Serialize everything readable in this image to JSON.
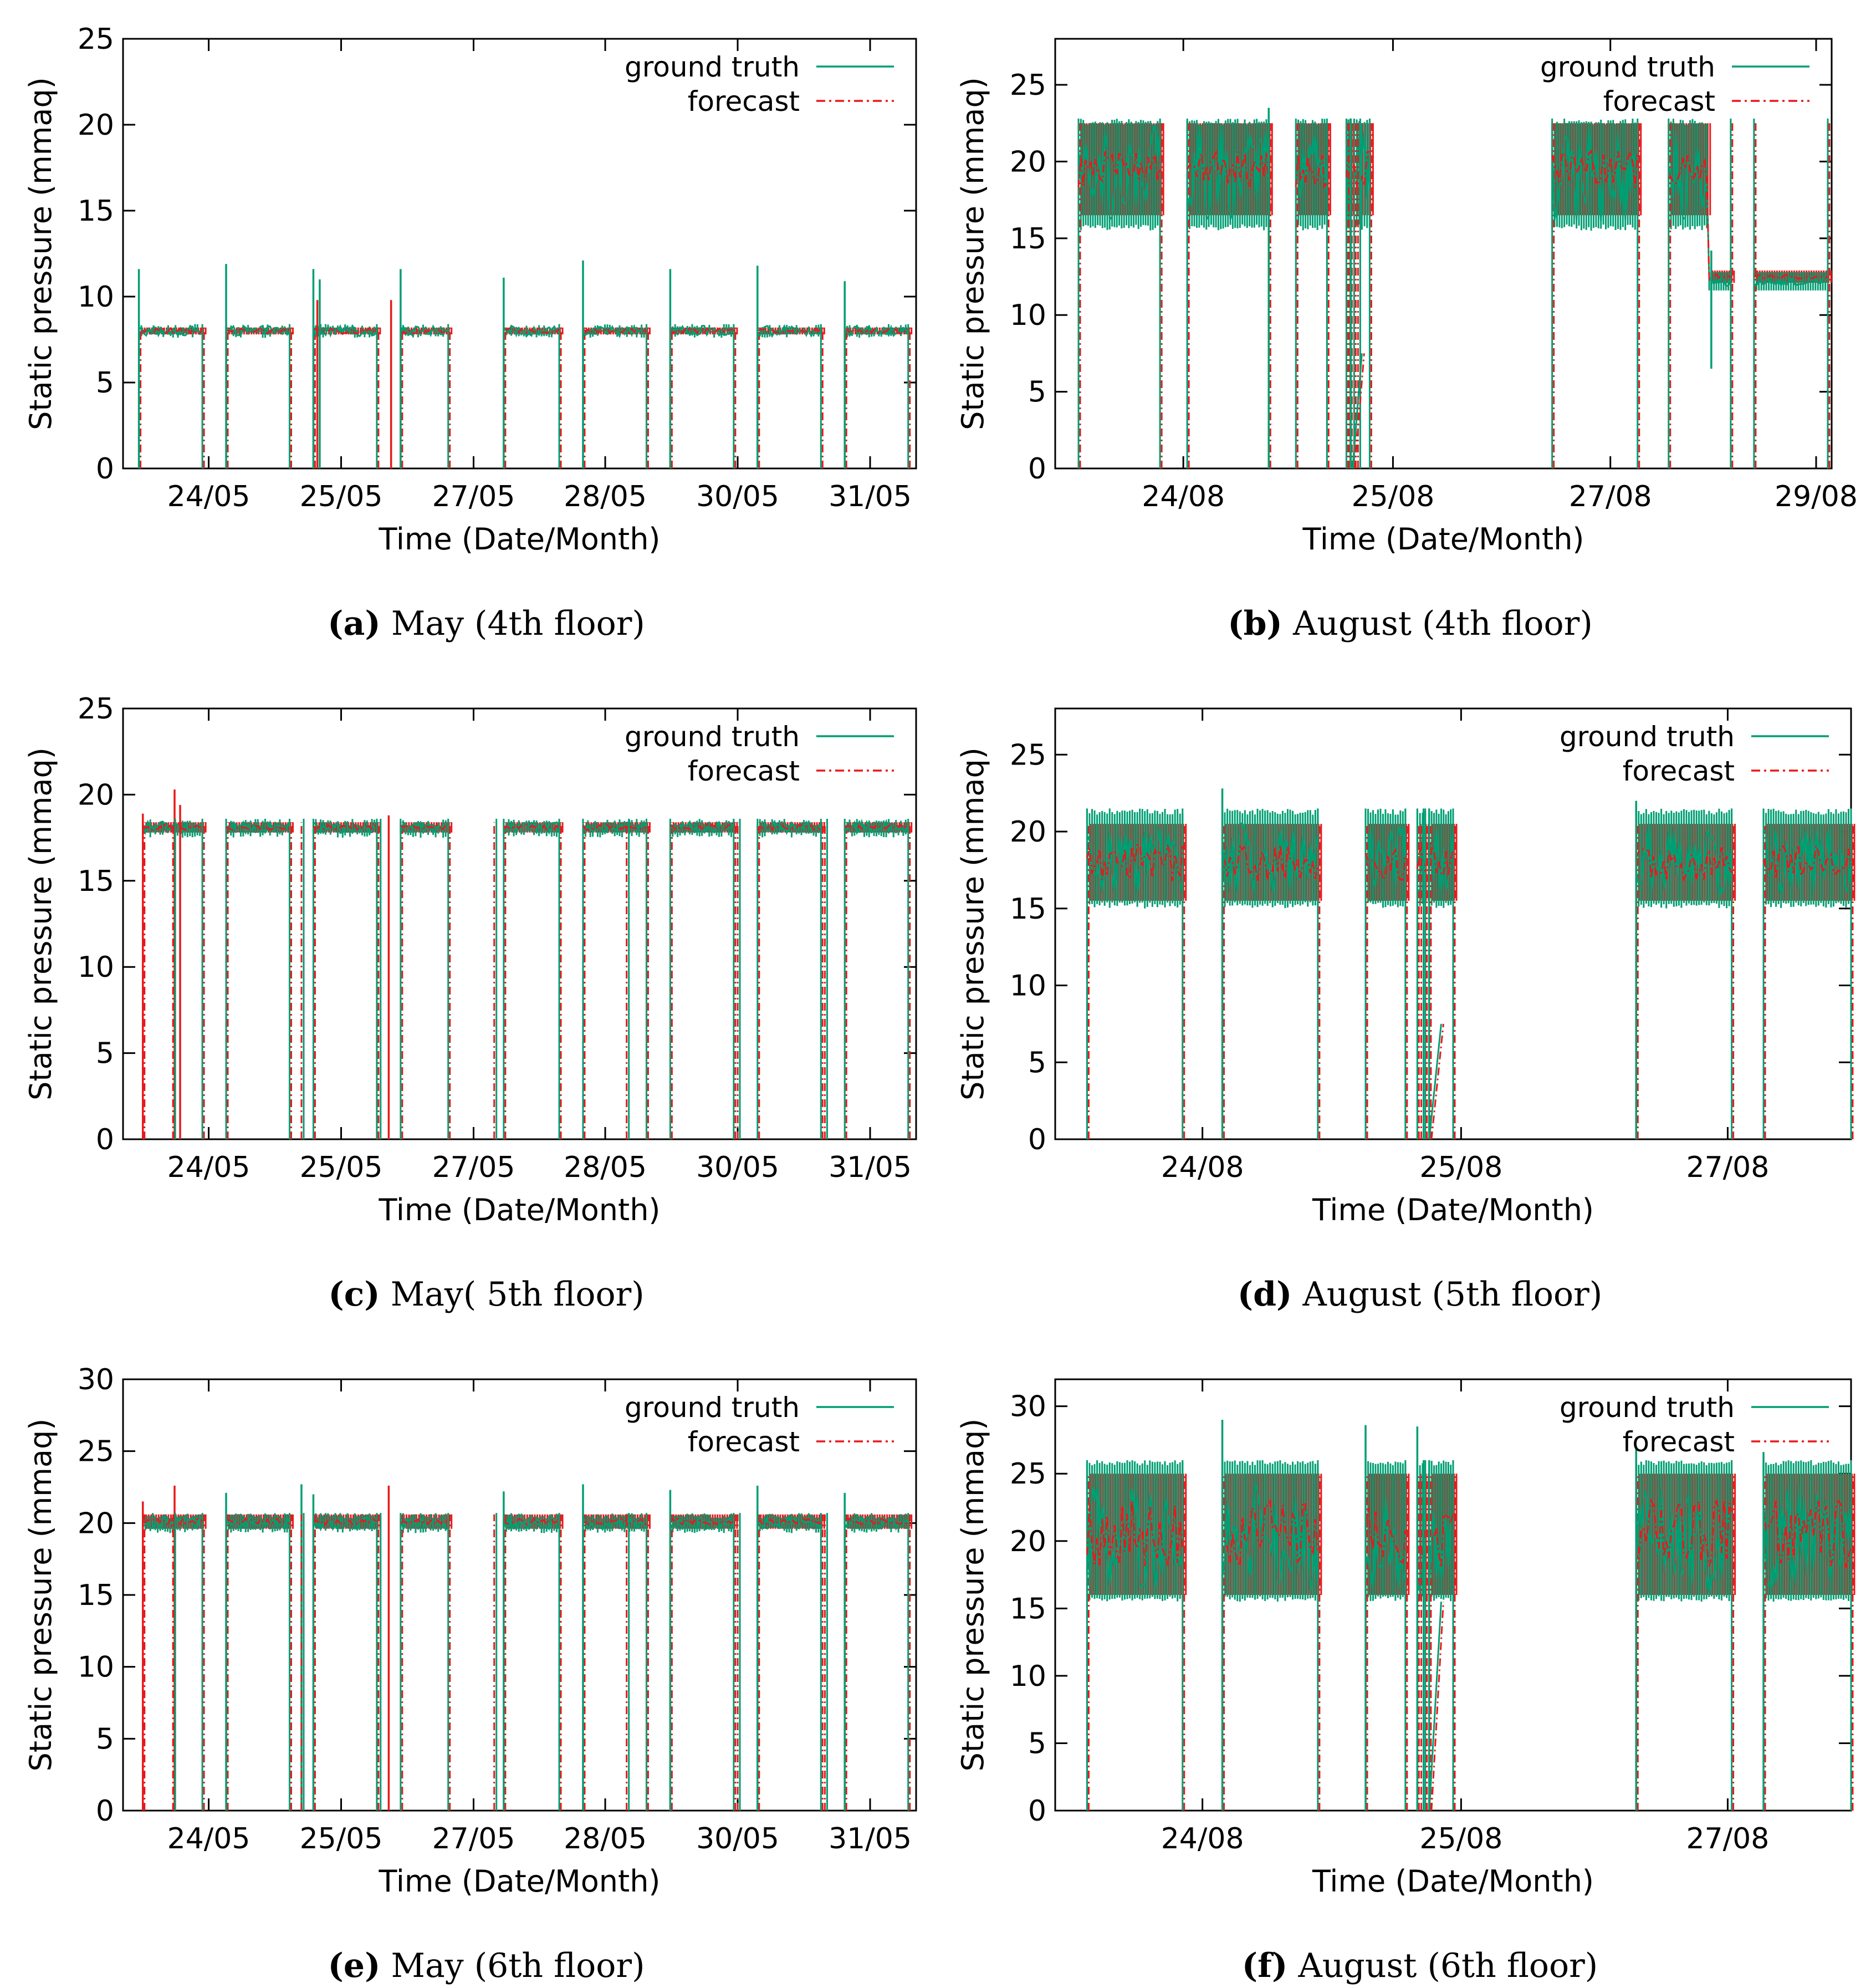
{
  "colors": {
    "ground_truth": "#009e73",
    "forecast": "#e8191b",
    "axis": "#000000"
  },
  "chart_data": [
    {
      "id": "a",
      "type": "line",
      "caption_letter": "(a)",
      "caption_text": "May (4th floor)",
      "xlabel": "Time (Date/Month)",
      "ylabel": "Static pressure (mmaq)",
      "ylim": [
        0,
        25
      ],
      "yticks": [
        "0",
        "5",
        "10",
        "15",
        "20",
        "25"
      ],
      "xlim": [
        0,
        100
      ],
      "xticks": [
        {
          "x": 10.8,
          "label": "24/05"
        },
        {
          "x": 27.5,
          "label": "25/05"
        },
        {
          "x": 44.2,
          "label": "27/05"
        },
        {
          "x": 60.8,
          "label": "28/05"
        },
        {
          "x": 77.5,
          "label": "30/05"
        },
        {
          "x": 94.2,
          "label": "31/05"
        }
      ],
      "legend": [
        "ground truth",
        "forecast"
      ],
      "segments": [
        [
          2,
          10
        ],
        [
          13,
          21
        ],
        [
          24,
          32
        ],
        [
          35,
          41
        ],
        [
          48,
          55
        ],
        [
          58,
          66
        ],
        [
          69,
          77
        ],
        [
          80,
          88
        ],
        [
          91,
          99
        ]
      ],
      "gt_mean": 8,
      "gt_noise": 0.3,
      "fc_mean": 8,
      "fc_noise": 0.15,
      "fc_band": [
        7.8,
        8.2
      ],
      "gt_band": [
        7.6,
        8.4
      ],
      "spikes": [
        {
          "x": 2,
          "v": 11.6,
          "s": "gt"
        },
        {
          "x": 13,
          "v": 11.9,
          "s": "gt"
        },
        {
          "x": 24,
          "v": 11.6,
          "s": "gt"
        },
        {
          "x": 24.5,
          "v": 9.8,
          "s": "fc"
        },
        {
          "x": 24.8,
          "v": 11.0,
          "s": "gt"
        },
        {
          "x": 33.8,
          "v": 9.8,
          "s": "fc"
        },
        {
          "x": 35,
          "v": 11.6,
          "s": "gt"
        },
        {
          "x": 48,
          "v": 11.1,
          "s": "gt"
        },
        {
          "x": 58,
          "v": 12.1,
          "s": "gt"
        },
        {
          "x": 69,
          "v": 11.6,
          "s": "gt"
        },
        {
          "x": 80,
          "v": 11.8,
          "s": "gt"
        },
        {
          "x": 91,
          "v": 10.9,
          "s": "gt"
        }
      ],
      "dips": [],
      "ramps": [],
      "level_shift": null
    },
    {
      "id": "b",
      "type": "line",
      "caption_letter": "(b)",
      "caption_text": "August (4th floor)",
      "xlabel": "Time (Date/Month)",
      "ylabel": "Static pressure (mmaq)",
      "ylim": [
        0,
        28
      ],
      "yticks": [
        "0",
        "5",
        "10",
        "15",
        "20",
        "25"
      ],
      "xlim": [
        0,
        100
      ],
      "xticks": [
        {
          "x": 16.5,
          "label": "24/08"
        },
        {
          "x": 43.5,
          "label": "25/08"
        },
        {
          "x": 71.5,
          "label": "27/08"
        },
        {
          "x": 98,
          "label": "29/08"
        }
      ],
      "legend": [
        "ground truth",
        "forecast"
      ],
      "segments": [
        [
          3,
          13.5
        ],
        [
          17,
          27.5
        ],
        [
          31,
          35
        ],
        [
          37.5,
          38
        ],
        [
          38.5,
          40.5
        ],
        [
          64,
          75
        ],
        [
          79,
          87
        ],
        [
          90,
          99.5
        ]
      ],
      "gt_mean": 19.2,
      "gt_noise": 3.2,
      "fc_mean": 19.5,
      "fc_noise": 1.2,
      "fc_band": [
        16.5,
        22.5
      ],
      "gt_band": [
        15.5,
        22.8
      ],
      "spikes": [
        {
          "x": 27.5,
          "v": 23.5,
          "s": "gt"
        }
      ],
      "dips": [
        {
          "x": 37.8,
          "v": 0
        },
        {
          "x": 39.0,
          "v": 0
        }
      ],
      "ramps": [
        {
          "x1": 38.3,
          "v1": 0,
          "x2": 39.5,
          "v2": 7.5
        }
      ],
      "level_shift": {
        "x": 84,
        "v": 12.2,
        "dip_x": 84.5,
        "dip_v": 6.5
      }
    },
    {
      "id": "c",
      "type": "line",
      "caption_letter": "(c)",
      "caption_text": "May( 5th floor)",
      "xlabel": "Time (Date/Month)",
      "ylabel": "Static pressure (mmaq)",
      "ylim": [
        0,
        25
      ],
      "yticks": [
        "0",
        "5",
        "10",
        "15",
        "20",
        "25"
      ],
      "xlim": [
        0,
        100
      ],
      "xticks": [
        {
          "x": 10.8,
          "label": "24/05"
        },
        {
          "x": 27.5,
          "label": "25/05"
        },
        {
          "x": 44.2,
          "label": "27/05"
        },
        {
          "x": 60.8,
          "label": "28/05"
        },
        {
          "x": 77.5,
          "label": "30/05"
        },
        {
          "x": 94.2,
          "label": "31/05"
        }
      ],
      "legend": [
        "ground truth",
        "forecast"
      ],
      "segments": [
        [
          2.5,
          10
        ],
        [
          13,
          21
        ],
        [
          24,
          32
        ],
        [
          35,
          41
        ],
        [
          48,
          55
        ],
        [
          58,
          66
        ],
        [
          69,
          77
        ],
        [
          80,
          88
        ],
        [
          91,
          99
        ]
      ],
      "gt_mean": 18.1,
      "gt_noise": 0.35,
      "fc_mean": 18.1,
      "fc_noise": 0.15,
      "fc_band": [
        17.8,
        18.4
      ],
      "gt_band": [
        17.5,
        18.6
      ],
      "spikes": [
        {
          "x": 2.5,
          "v": 18.9,
          "s": "fc"
        },
        {
          "x": 6.5,
          "v": 20.3,
          "s": "fc"
        },
        {
          "x": 7.2,
          "v": 19.4,
          "s": "fc"
        },
        {
          "x": 33.5,
          "v": 18.8,
          "s": "fc"
        }
      ],
      "dips": [
        {
          "x": 6.3,
          "v": 0
        },
        {
          "x": 22.5,
          "v": 0
        },
        {
          "x": 32.2,
          "v": 0
        },
        {
          "x": 46.8,
          "v": 0
        },
        {
          "x": 63.5,
          "v": 0
        },
        {
          "x": 77.5,
          "v": 0
        },
        {
          "x": 88.5,
          "v": 0
        }
      ],
      "ramps": [],
      "level_shift": null
    },
    {
      "id": "d",
      "type": "line",
      "caption_letter": "(d)",
      "caption_text": "August (5th floor)",
      "xlabel": "Time (Date/Month)",
      "ylabel": "Static pressure (mmaq)",
      "ylim": [
        0,
        28
      ],
      "yticks": [
        "0",
        "5",
        "10",
        "15",
        "20",
        "25"
      ],
      "xlim": [
        0,
        100
      ],
      "xticks": [
        {
          "x": 18.5,
          "label": "24/08"
        },
        {
          "x": 51,
          "label": "25/08"
        },
        {
          "x": 84.5,
          "label": "27/08"
        }
      ],
      "legend": [
        "ground truth",
        "forecast"
      ],
      "segments": [
        [
          4,
          16
        ],
        [
          21,
          33
        ],
        [
          39,
          44
        ],
        [
          45.5,
          46.5
        ],
        [
          47,
          50
        ],
        [
          73,
          85
        ],
        [
          89,
          100
        ]
      ],
      "gt_mean": 18.2,
      "gt_noise": 2.4,
      "fc_mean": 18.0,
      "fc_noise": 1.2,
      "fc_band": [
        15.5,
        20.5
      ],
      "gt_band": [
        15.0,
        21.5
      ],
      "spikes": [
        {
          "x": 21,
          "v": 22.8,
          "s": "gt"
        },
        {
          "x": 73,
          "v": 22.0,
          "s": "gt"
        }
      ],
      "dips": [
        {
          "x": 46.0,
          "v": 0
        },
        {
          "x": 46.7,
          "v": 0
        }
      ],
      "ramps": [
        {
          "x1": 47.0,
          "v1": 0,
          "x2": 48.5,
          "v2": 7.5
        }
      ],
      "level_shift": null
    },
    {
      "id": "e",
      "type": "line",
      "caption_letter": "(e)",
      "caption_text": "May (6th floor)",
      "xlabel": "Time (Date/Month)",
      "ylabel": "Static pressure (mmaq)",
      "ylim": [
        0,
        30
      ],
      "yticks": [
        "0",
        "5",
        "10",
        "15",
        "20",
        "25",
        "30"
      ],
      "xlim": [
        0,
        100
      ],
      "xticks": [
        {
          "x": 10.8,
          "label": "24/05"
        },
        {
          "x": 27.5,
          "label": "25/05"
        },
        {
          "x": 44.2,
          "label": "27/05"
        },
        {
          "x": 60.8,
          "label": "28/05"
        },
        {
          "x": 77.5,
          "label": "30/05"
        },
        {
          "x": 94.2,
          "label": "31/05"
        }
      ],
      "legend": [
        "ground truth",
        "forecast"
      ],
      "segments": [
        [
          2.5,
          10
        ],
        [
          13,
          21
        ],
        [
          24,
          32
        ],
        [
          35,
          41
        ],
        [
          48,
          55
        ],
        [
          58,
          66
        ],
        [
          69,
          77
        ],
        [
          80,
          88
        ],
        [
          91,
          99
        ]
      ],
      "gt_mean": 20.0,
      "gt_noise": 0.45,
      "fc_mean": 20.1,
      "fc_noise": 0.2,
      "fc_band": [
        19.6,
        20.6
      ],
      "gt_band": [
        19.3,
        20.7
      ],
      "spikes": [
        {
          "x": 2.5,
          "v": 21.5,
          "s": "fc"
        },
        {
          "x": 6.5,
          "v": 22.6,
          "s": "fc"
        },
        {
          "x": 13,
          "v": 22.1,
          "s": "gt"
        },
        {
          "x": 22.5,
          "v": 22.7,
          "s": "gt"
        },
        {
          "x": 24,
          "v": 22.0,
          "s": "gt"
        },
        {
          "x": 33.5,
          "v": 22.6,
          "s": "fc"
        },
        {
          "x": 48,
          "v": 22.2,
          "s": "gt"
        },
        {
          "x": 58,
          "v": 22.7,
          "s": "gt"
        },
        {
          "x": 69,
          "v": 22.3,
          "s": "gt"
        },
        {
          "x": 80,
          "v": 22.6,
          "s": "gt"
        },
        {
          "x": 91,
          "v": 22.1,
          "s": "gt"
        }
      ],
      "dips": [
        {
          "x": 6.3,
          "v": 0
        },
        {
          "x": 22.5,
          "v": 0
        },
        {
          "x": 32.2,
          "v": 0
        },
        {
          "x": 46.8,
          "v": 0
        },
        {
          "x": 63.5,
          "v": 0
        },
        {
          "x": 77.5,
          "v": 0
        },
        {
          "x": 88.5,
          "v": 0
        }
      ],
      "ramps": [],
      "level_shift": null
    },
    {
      "id": "f",
      "type": "line",
      "caption_letter": "(f)",
      "caption_text": "August (6th floor)",
      "xlabel": "Time (Date/Month)",
      "ylabel": "Static pressure (mmaq)",
      "ylim": [
        0,
        32
      ],
      "yticks": [
        "0",
        "5",
        "10",
        "15",
        "20",
        "25",
        "30"
      ],
      "xlim": [
        0,
        100
      ],
      "xticks": [
        {
          "x": 18.5,
          "label": "24/08"
        },
        {
          "x": 51,
          "label": "25/08"
        },
        {
          "x": 84.5,
          "label": "27/08"
        }
      ],
      "legend": [
        "ground truth",
        "forecast"
      ],
      "segments": [
        [
          4,
          16
        ],
        [
          21,
          33
        ],
        [
          39,
          44
        ],
        [
          45.5,
          46.5
        ],
        [
          47,
          50
        ],
        [
          73,
          85
        ],
        [
          89,
          100
        ]
      ],
      "gt_mean": 20.2,
      "gt_noise": 4.0,
      "fc_mean": 20.5,
      "fc_noise": 2.5,
      "fc_band": [
        16.0,
        25.0
      ],
      "gt_band": [
        15.5,
        26.0
      ],
      "spikes": [
        {
          "x": 21,
          "v": 29.0,
          "s": "gt"
        },
        {
          "x": 39,
          "v": 28.6,
          "s": "gt"
        },
        {
          "x": 45.5,
          "v": 28.5,
          "s": "gt"
        },
        {
          "x": 73,
          "v": 27.0,
          "s": "gt"
        },
        {
          "x": 89,
          "v": 26.6,
          "s": "gt"
        }
      ],
      "dips": [
        {
          "x": 46.0,
          "v": 0
        },
        {
          "x": 46.7,
          "v": 0
        }
      ],
      "ramps": [
        {
          "x1": 47.0,
          "v1": 0,
          "x2": 48.5,
          "v2": 15.5
        }
      ],
      "level_shift": null
    }
  ]
}
